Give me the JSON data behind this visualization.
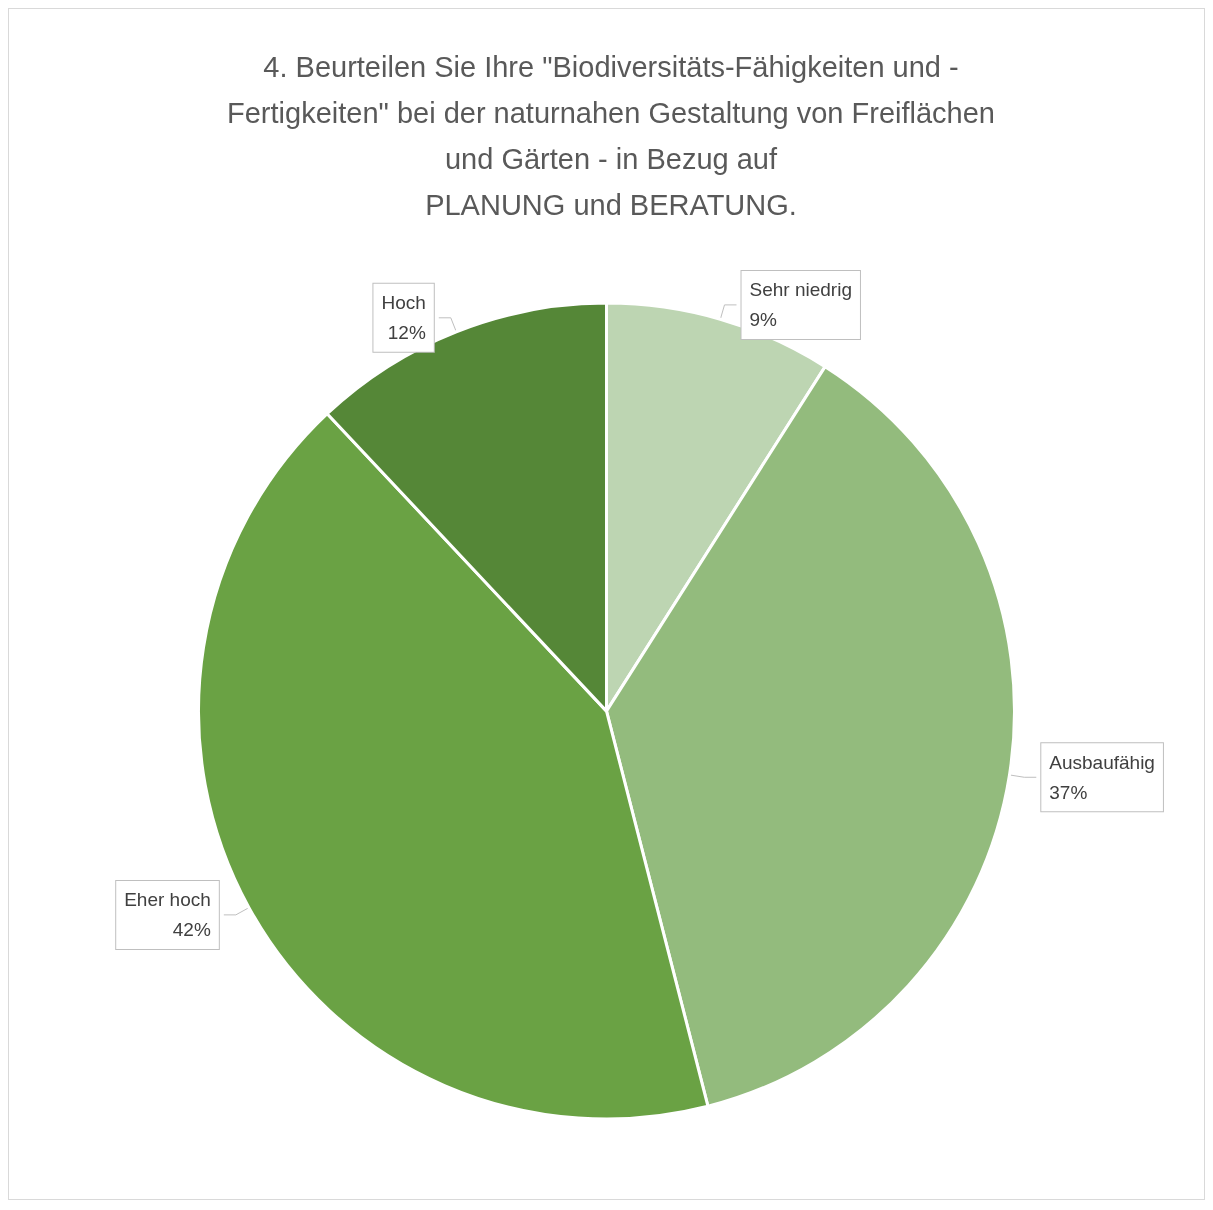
{
  "chart_data": {
    "type": "pie",
    "title": "4. Beurteilen Sie Ihre \"Biodiversitäts-Fähigkeiten und -\nFertigkeiten\" bei der naturnahen Gestaltung von Freiflächen\nund Gärten - in Bezug auf\nPLANUNG und BERATUNG.",
    "categories": [
      "Sehr niedrig",
      "Ausbaufähig",
      "Eher hoch",
      "Hoch"
    ],
    "values": [
      9,
      37,
      42,
      12
    ],
    "value_labels": [
      "9%",
      "37%",
      "42%",
      "12%"
    ],
    "colors": [
      "#bdd5b2",
      "#93bb7d",
      "#6aa244",
      "#558737"
    ],
    "legend": false
  }
}
